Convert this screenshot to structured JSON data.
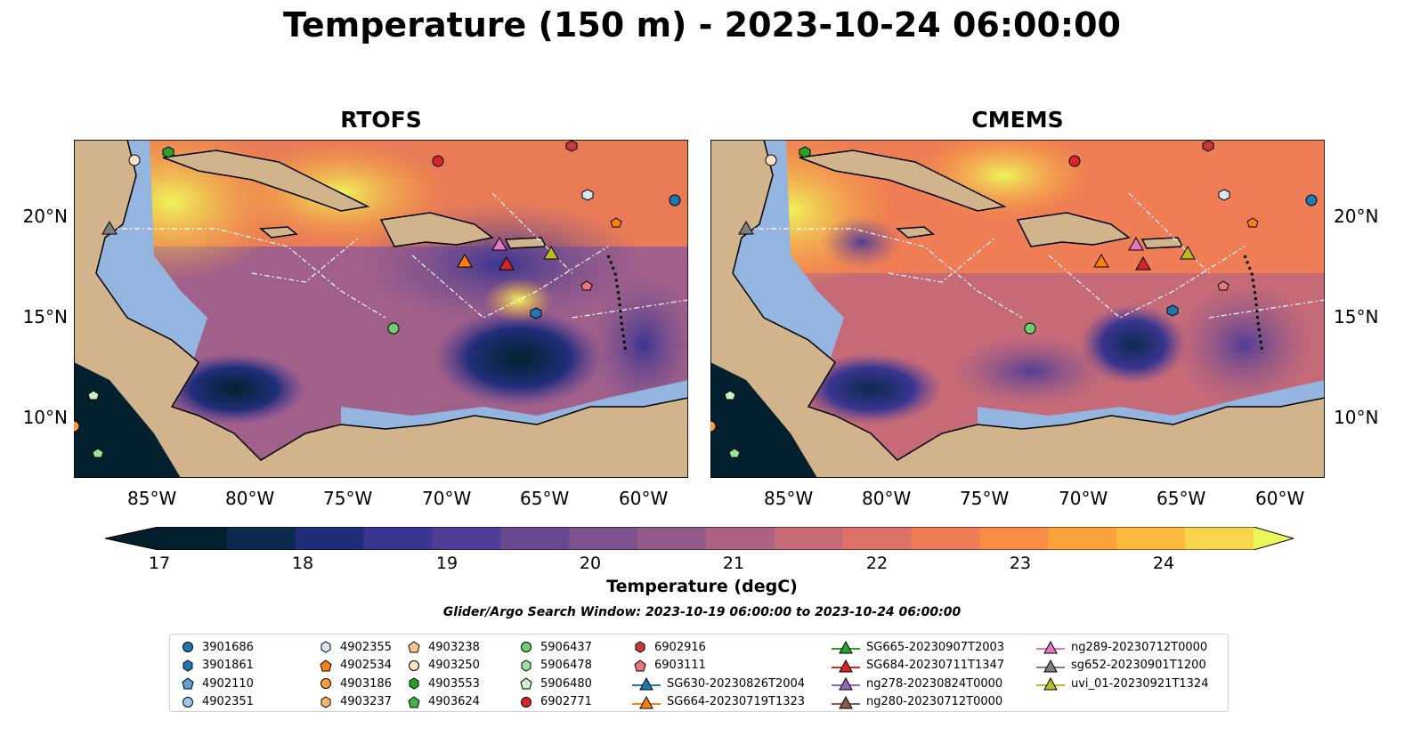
{
  "title": "Temperature (150 m) - 2023-10-24 06:00:00",
  "panels": [
    {
      "name": "RTOFS"
    },
    {
      "name": "CMEMS"
    }
  ],
  "axes": {
    "lon_labels": [
      "85°W",
      "80°W",
      "75°W",
      "70°W",
      "65°W",
      "60°W"
    ],
    "lat_labels": [
      "20°N",
      "15°N",
      "10°N"
    ]
  },
  "colorbar": {
    "label": "Temperature (degC)",
    "ticks": [
      "17",
      "18",
      "19",
      "20",
      "21",
      "22",
      "23",
      "24"
    ],
    "colors": [
      "#03202e",
      "#0b2a4e",
      "#202e79",
      "#3a3590",
      "#503d96",
      "#694891",
      "#7e528f",
      "#945b8a",
      "#ad6283",
      "#c66a78",
      "#dd7067",
      "#ef7d55",
      "#f98d45",
      "#fba23b",
      "#fdba3d",
      "#f9d44d"
    ],
    "under_color": "#031d2a",
    "over_color": "#e9f75b"
  },
  "search_window": "Glider/Argo Search Window: 2023-10-19 06:00:00 to 2023-10-24 06:00:00",
  "legend": [
    {
      "label": "3901686",
      "marker": "circle",
      "color": "#1f77b4"
    },
    {
      "label": "3901861",
      "marker": "hexagon",
      "color": "#1f77b4"
    },
    {
      "label": "4902110",
      "marker": "pentagon",
      "color": "#5e9fd6"
    },
    {
      "label": "4902351",
      "marker": "circle",
      "color": "#9dc9ee"
    },
    {
      "label": "4902355",
      "marker": "hexagon",
      "color": "#d4e8f8"
    },
    {
      "label": "4902534",
      "marker": "pentagon",
      "color": "#ff7f0e"
    },
    {
      "label": "4903186",
      "marker": "circle",
      "color": "#ff9a3a"
    },
    {
      "label": "4903237",
      "marker": "hexagon",
      "color": "#ffb366"
    },
    {
      "label": "4903238",
      "marker": "pentagon",
      "color": "#ffc78f"
    },
    {
      "label": "4903250",
      "marker": "circle",
      "color": "#ffe0c0"
    },
    {
      "label": "4903553",
      "marker": "hexagon",
      "color": "#2ca02c"
    },
    {
      "label": "4903624",
      "marker": "pentagon",
      "color": "#3cb54a"
    },
    {
      "label": "5906437",
      "marker": "circle",
      "color": "#6fcf6f"
    },
    {
      "label": "5906478",
      "marker": "hexagon",
      "color": "#9be39b"
    },
    {
      "label": "5906480",
      "marker": "pentagon",
      "color": "#c8f2c8"
    },
    {
      "label": "6902771",
      "marker": "circle",
      "color": "#d62728"
    },
    {
      "label": "6902916",
      "marker": "hexagon",
      "color": "#c9393a"
    },
    {
      "label": "6903111",
      "marker": "pentagon",
      "color": "#e8767a"
    },
    {
      "label": "SG630-20230826T2004",
      "marker": "triangle-line",
      "color": "#1f77b4"
    },
    {
      "label": "SG664-20230719T1323",
      "marker": "triangle-line",
      "color": "#ff7f0e"
    },
    {
      "label": "SG665-20230907T2003",
      "marker": "triangle-line",
      "color": "#2ca02c"
    },
    {
      "label": "SG684-20230711T1347",
      "marker": "triangle-line",
      "color": "#d62728"
    },
    {
      "label": "ng278-20230824T0000",
      "marker": "triangle-line",
      "color": "#9467bd"
    },
    {
      "label": "ng280-20230712T0000",
      "marker": "triangle-line",
      "color": "#8c564b"
    },
    {
      "label": "ng289-20230712T0000",
      "marker": "triangle-line",
      "color": "#e377c2"
    },
    {
      "label": "sg652-20230901T1200",
      "marker": "triangle-line",
      "color": "#7f7f7f"
    },
    {
      "label": "uvi_01-20230921T1324",
      "marker": "triangle-line",
      "color": "#bcbd22"
    }
  ],
  "map_colors": {
    "land": "#d1b48c",
    "shelf": "#93b5e0",
    "coast": "#000000"
  }
}
